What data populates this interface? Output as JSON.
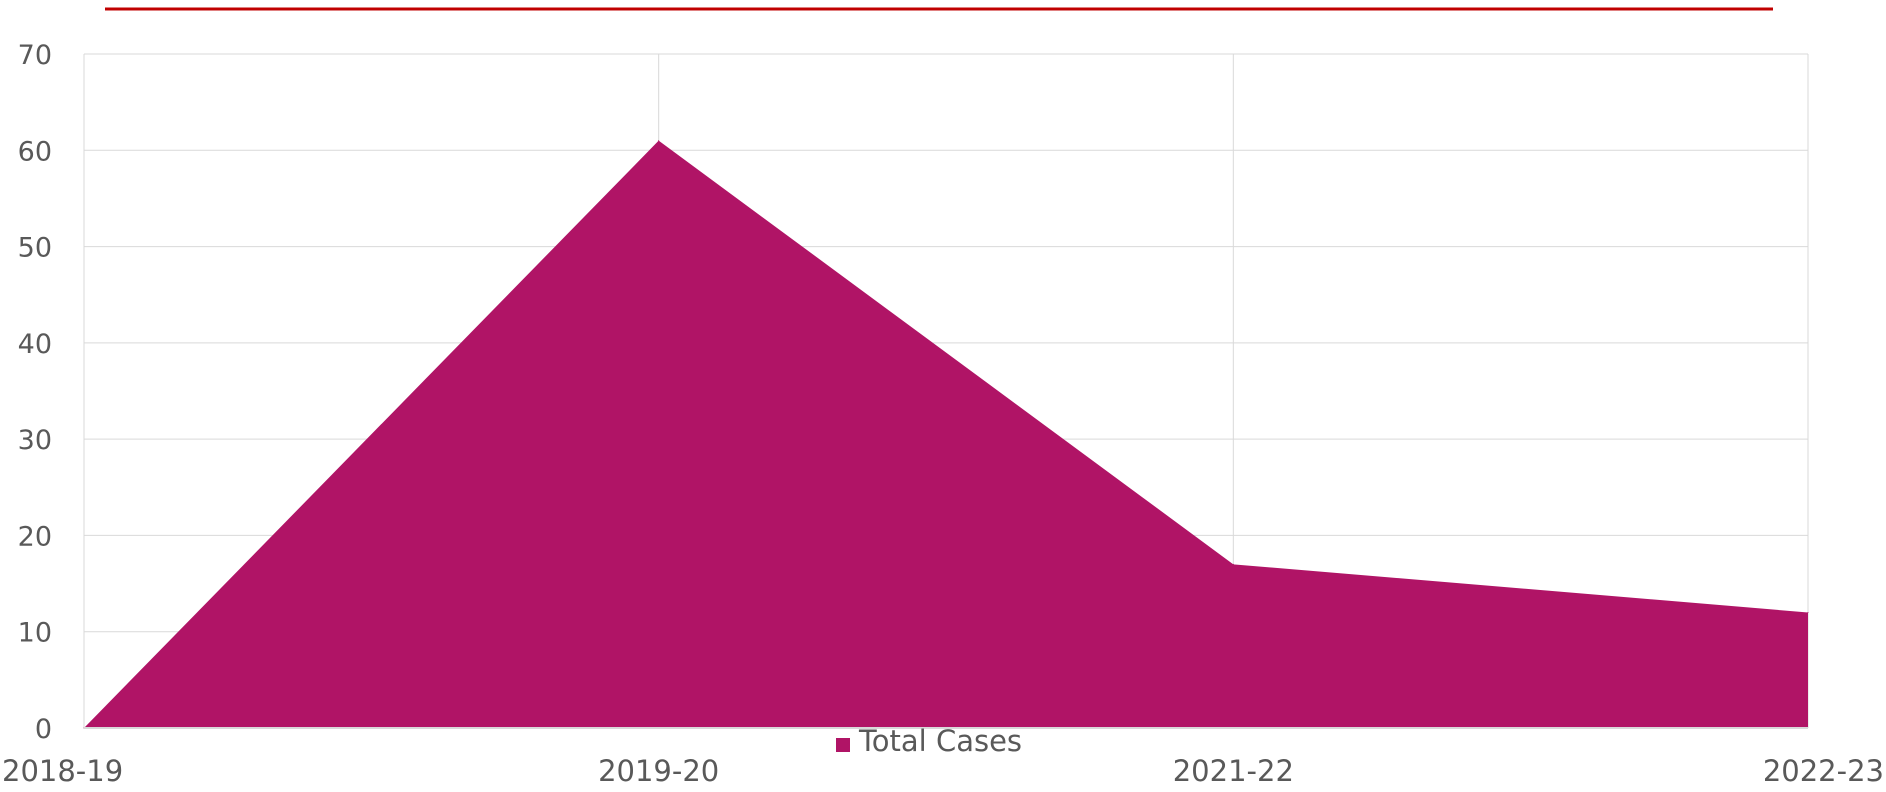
{
  "chart_data": {
    "type": "area",
    "categories": [
      "2018-19",
      "2019-20",
      "2021-22",
      "2022-23"
    ],
    "series": [
      {
        "name": "Total Cases",
        "values": [
          0,
          61,
          17,
          12
        ]
      }
    ],
    "title": "",
    "xlabel": "",
    "ylabel": "",
    "ylim": [
      0,
      70
    ],
    "yticks": [
      0,
      10,
      20,
      30,
      40,
      50,
      60,
      70
    ],
    "grid": true,
    "legend_position": "bottom-center",
    "colors": {
      "series": "#b01466",
      "header_rule": "#c00000",
      "grid": "#d9d9d9",
      "text": "#595959"
    }
  }
}
